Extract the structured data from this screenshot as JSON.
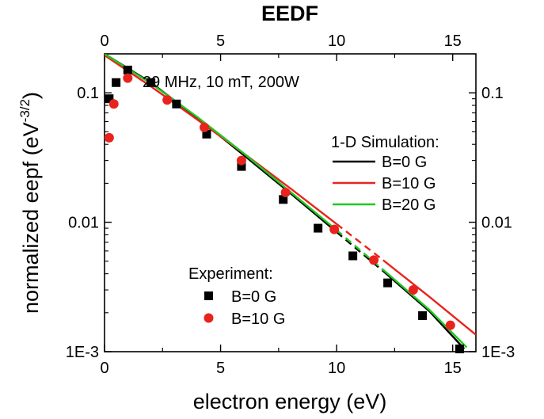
{
  "chart_data": {
    "type": "scatter",
    "title": "EEDF",
    "xlabel": "electron energy (eV)",
    "ylabel_main": "normalized eepf (eV",
    "ylabel_sup": "-3/2",
    "ylabel_close": ")",
    "annotation": "29 MHz, 10 mT, 200W",
    "xlim": [
      0,
      16
    ],
    "ylim": [
      0.001,
      0.2
    ],
    "y_scale": "log",
    "x_ticks": [
      "0",
      "5",
      "10",
      "15"
    ],
    "y_ticks": [
      "1E-3",
      "0.01",
      "0.1"
    ],
    "grid": false,
    "colors": {
      "black": "#000000",
      "red": "#e8231d",
      "green": "#21c821"
    },
    "simulation_legend_title": "1-D Simulation:",
    "experiment_legend_title": "Experiment:",
    "series": [
      {
        "name": "B=0 G",
        "group": "simulation",
        "color": "#000000",
        "x": [
          0,
          2,
          4,
          6,
          8,
          10,
          12,
          14,
          15.5
        ],
        "y": [
          0.2,
          0.12,
          0.064,
          0.033,
          0.0168,
          0.0084,
          0.0042,
          0.00205,
          0.00105
        ]
      },
      {
        "name": "B=10 G",
        "group": "simulation",
        "color": "#e8231d",
        "x": [
          0,
          2,
          4,
          6,
          8,
          10,
          12,
          14,
          16
        ],
        "y": [
          0.195,
          0.112,
          0.062,
          0.034,
          0.0183,
          0.0097,
          0.0051,
          0.00265,
          0.00135
        ]
      },
      {
        "name": "B=20 G",
        "group": "simulation",
        "color": "#21c821",
        "x": [
          0,
          2,
          4,
          6,
          8,
          10,
          12,
          14,
          15.6
        ],
        "y": [
          0.2,
          0.118,
          0.065,
          0.034,
          0.0172,
          0.0087,
          0.0043,
          0.0021,
          0.00108
        ]
      },
      {
        "name": "B=0 G",
        "group": "experiment",
        "color": "#000000",
        "marker": "square",
        "x": [
          0.2,
          0.5,
          1.0,
          2.0,
          3.1,
          4.4,
          5.9,
          7.7,
          9.2,
          10.7,
          12.2,
          13.7,
          15.3
        ],
        "y": [
          0.09,
          0.12,
          0.15,
          0.12,
          0.082,
          0.048,
          0.027,
          0.015,
          0.009,
          0.0055,
          0.0034,
          0.0019,
          0.00105
        ]
      },
      {
        "name": "B=10 G",
        "group": "experiment",
        "color": "#e8231d",
        "marker": "circle",
        "x": [
          0.2,
          0.4,
          1.0,
          2.7,
          4.3,
          5.9,
          7.8,
          9.9,
          11.6,
          13.3,
          14.9
        ],
        "y": [
          0.045,
          0.082,
          0.13,
          0.088,
          0.054,
          0.03,
          0.017,
          0.0088,
          0.0051,
          0.003,
          0.0016
        ]
      }
    ]
  }
}
